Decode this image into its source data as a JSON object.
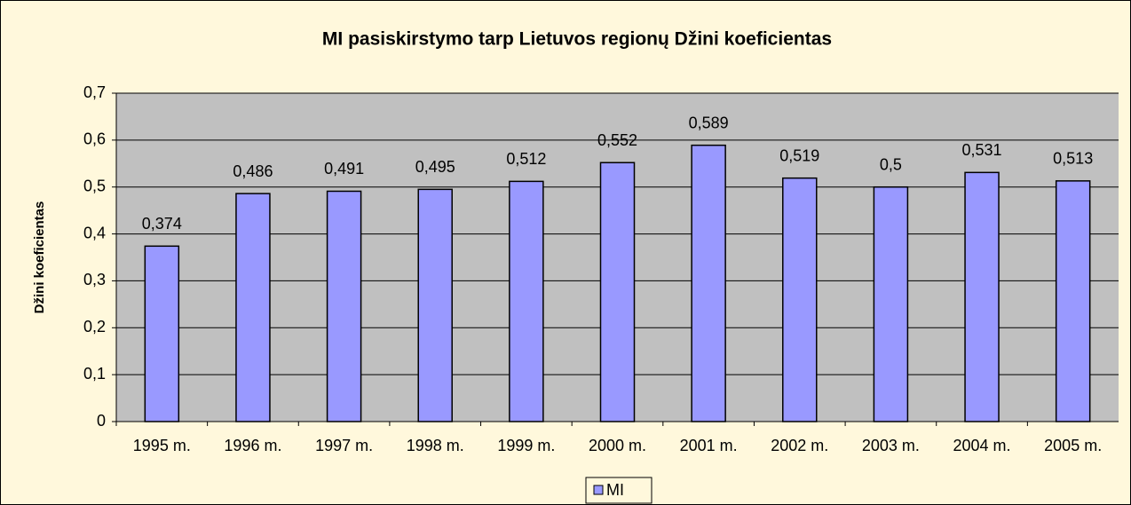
{
  "chart_data": {
    "type": "bar",
    "title": "MI pasiskirstymo tarp Lietuvos regionų Džini koeficientas",
    "y_label": "Džini koeficientas",
    "categories": [
      "1995 m.",
      "1996 m.",
      "1997 m.",
      "1998 m.",
      "1999 m.",
      "2000 m.",
      "2001 m.",
      "2002 m.",
      "2003 m.",
      "2004 m.",
      "2005 m."
    ],
    "series": [
      {
        "name": "MI",
        "color": "#9999ff",
        "values": [
          0.374,
          0.486,
          0.491,
          0.495,
          0.512,
          0.552,
          0.589,
          0.519,
          0.5,
          0.531,
          0.513
        ],
        "value_labels": [
          "0,374",
          "0,486",
          "0,491",
          "0,495",
          "0,512",
          "0,552",
          "0,589",
          "0,519",
          "0,5",
          "0,531",
          "0,513"
        ]
      }
    ],
    "ylim": [
      0,
      0.7
    ],
    "yticks": [
      0,
      {
        "value": 0.1,
        "label": "0,1"
      },
      {
        "value": 0.2,
        "label": "0,2"
      },
      {
        "value": 0.3,
        "label": "0,3"
      },
      {
        "value": 0.4,
        "label": "0,4"
      },
      {
        "value": 0.5,
        "label": "0,5"
      },
      {
        "value": 0.6,
        "label": "0,6"
      },
      {
        "value": 0.7,
        "label": "0,7"
      }
    ],
    "grid": true,
    "legend": "bottom"
  }
}
